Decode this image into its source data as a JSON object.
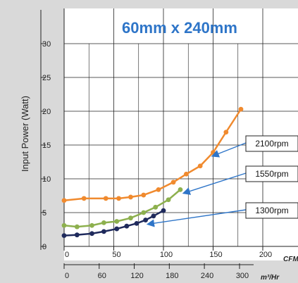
{
  "chart_data": {
    "type": "line",
    "title": "60mm x 240mm",
    "ylabel": "Input Power (Watt)",
    "x_unit_primary": "CFM",
    "x_unit_secondary": "m³/Hr",
    "xlim": [
      0,
      200
    ],
    "ylim": [
      0,
      30
    ],
    "x_ticks_primary": [
      "0",
      "50",
      "100",
      "150",
      "200"
    ],
    "x_ticks_secondary": [
      "0",
      "60",
      "120",
      "180",
      "240",
      "300"
    ],
    "x_ticks_secondary_values": [
      0,
      35.3,
      70.6,
      105.9,
      141.2,
      176.6
    ],
    "y_ticks": [
      "0",
      "5",
      "10",
      "15",
      "20",
      "25",
      "30"
    ],
    "y_tick_values": [
      0,
      5,
      10,
      15,
      20,
      25,
      30
    ],
    "grid": true,
    "series": [
      {
        "name": "2100rpm",
        "color": "#f08a2e",
        "x": [
          0,
          20,
          42,
          55,
          67,
          80,
          95,
          110,
          123,
          137,
          150,
          163,
          178
        ],
        "y": [
          6.8,
          7.1,
          7.1,
          7.1,
          7.3,
          7.6,
          8.4,
          9.5,
          10.7,
          11.9,
          13.9,
          16.9,
          20.3
        ]
      },
      {
        "name": "1550rpm",
        "color": "#8db04e",
        "x": [
          0,
          13,
          28,
          40,
          53,
          67,
          80,
          92,
          105,
          117
        ],
        "y": [
          3.1,
          2.9,
          3.1,
          3.5,
          3.7,
          4.2,
          5.0,
          5.8,
          6.9,
          8.4
        ]
      },
      {
        "name": "1300rpm",
        "color": "#1f2a5c",
        "x": [
          0,
          13,
          28,
          40,
          53,
          63,
          73,
          82,
          90,
          100
        ],
        "y": [
          1.6,
          1.7,
          1.9,
          2.2,
          2.6,
          3.0,
          3.4,
          3.9,
          4.5,
          5.3
        ]
      }
    ]
  },
  "callouts": [
    {
      "label": "2100rpm",
      "series": 0
    },
    {
      "label": "1550rpm",
      "series": 1
    },
    {
      "label": "1300rpm",
      "series": 2
    }
  ]
}
